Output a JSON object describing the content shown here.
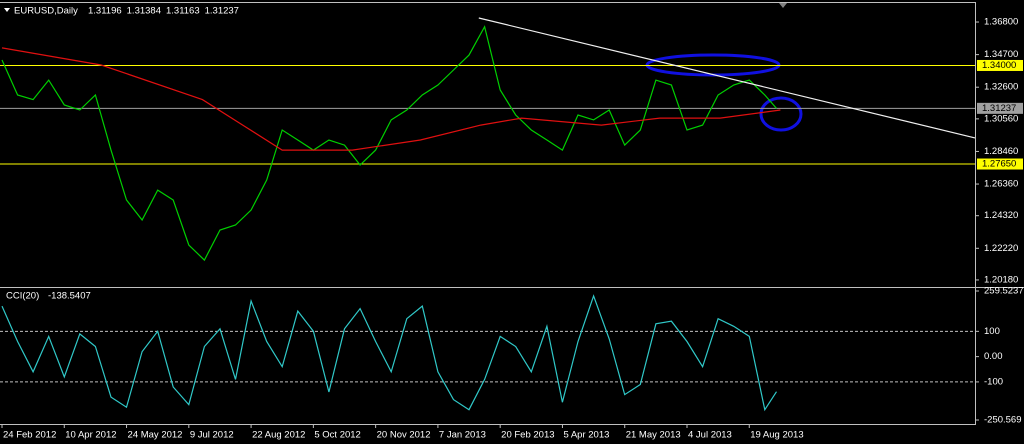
{
  "chart_data": [
    {
      "type": "line",
      "title": "EURUSD,Daily",
      "header_values": [
        1.31196,
        1.31384,
        1.31163,
        1.31237
      ],
      "xlim": [
        0,
        500
      ],
      "ylim": [
        1.1979,
        1.3809
      ],
      "yticks": [
        {
          "value": 1.368,
          "label": "1.36800"
        },
        {
          "value": 1.347,
          "label": "1.34700"
        },
        {
          "value": 1.326,
          "label": "1.32600"
        },
        {
          "value": 1.3056,
          "label": "1.30560"
        },
        {
          "value": 1.2846,
          "label": "1.28460"
        },
        {
          "value": 1.2636,
          "label": "1.26360"
        },
        {
          "value": 1.2432,
          "label": "1.24320"
        },
        {
          "value": 1.2222,
          "label": "1.22220"
        },
        {
          "value": 1.2018,
          "label": "1.20180"
        }
      ],
      "series": [
        {
          "color": "#00d000",
          "x": [
            0,
            8,
            16,
            24,
            32,
            40,
            48,
            56,
            64,
            72,
            80,
            88,
            96,
            104,
            112,
            120,
            128,
            136,
            144,
            152,
            160,
            168,
            176,
            184,
            192,
            200,
            208,
            216,
            224,
            232,
            240,
            248,
            256,
            264,
            272,
            280,
            288,
            296,
            304,
            312,
            320,
            328,
            336,
            344,
            352,
            360,
            368,
            376,
            384,
            392,
            398
          ],
          "values": [
            1.3435,
            1.321,
            1.318,
            1.3306,
            1.3145,
            1.3113,
            1.321,
            1.2855,
            1.2533,
            1.2404,
            1.2597,
            1.2533,
            1.2243,
            1.2146,
            1.234,
            1.2372,
            1.2469,
            1.2662,
            1.2984,
            1.292,
            1.2855,
            1.292,
            1.2887,
            1.2759,
            1.2855,
            1.3049,
            1.3113,
            1.321,
            1.3274,
            1.3371,
            1.3467,
            1.365,
            1.3242,
            1.3081,
            1.2984,
            1.292,
            1.2855,
            1.3081,
            1.3049,
            1.3113,
            1.2887,
            1.2984,
            1.3306,
            1.3274,
            1.2984,
            1.3016,
            1.321,
            1.3274,
            1.3306,
            1.321,
            1.31237
          ]
        },
        {
          "color": "#e01010",
          "x": [
            0,
            51,
            103,
            144,
            180,
            215,
            246,
            267,
            308,
            338,
            369,
            400
          ],
          "values": [
            1.3513,
            1.3403,
            1.318,
            1.2855,
            1.2855,
            1.292,
            1.3016,
            1.3061,
            1.3016,
            1.3061,
            1.3061,
            1.3113
          ]
        },
        {
          "color": "#f0f0f0",
          "x": [
            245,
            500
          ],
          "values": [
            1.3706,
            1.2933
          ]
        }
      ],
      "hlines": [
        {
          "value": 1.34,
          "label": "1.34000",
          "color": "#ffff00"
        },
        {
          "value": 1.31237,
          "label": "1.31237",
          "color": "#a0a0a0"
        },
        {
          "value": 1.2765,
          "label": "1.27650",
          "color": "#ffff00"
        }
      ]
    },
    {
      "type": "line",
      "title": "CCI(20)",
      "xlim": [
        0,
        500
      ],
      "ylim": [
        -250.569,
        259.5237
      ],
      "yticks": [
        259.5237,
        100,
        {
          "value": 0,
          "label": "0.00"
        },
        -100,
        -250.569
      ],
      "xticks": [
        {
          "value": 0,
          "label": "24 Feb 2012"
        },
        {
          "value": 32,
          "label": "10 Apr 2012"
        },
        {
          "value": 64,
          "label": "24 May 2012"
        },
        {
          "value": 96,
          "label": "9 Jul 2012"
        },
        {
          "value": 128,
          "label": "22 Aug 2012"
        },
        {
          "value": 160,
          "label": "5 Oct 2012"
        },
        {
          "value": 192,
          "label": "20 Nov 2012"
        },
        {
          "value": 224,
          "label": "7 Jan 2013"
        },
        {
          "value": 256,
          "label": "20 Feb 2013"
        },
        {
          "value": 288,
          "label": "5 Apr 2013"
        },
        {
          "value": 320,
          "label": "21 May 2013"
        },
        {
          "value": 352,
          "label": "4 Jul 2013"
        },
        {
          "value": 384,
          "label": "19 Aug 2013"
        }
      ],
      "series": [
        {
          "color": "#30c8c8",
          "x": [
            0,
            8,
            16,
            24,
            32,
            40,
            48,
            56,
            64,
            72,
            80,
            88,
            96,
            104,
            112,
            120,
            128,
            136,
            144,
            152,
            160,
            168,
            176,
            184,
            192,
            200,
            208,
            216,
            224,
            232,
            240,
            248,
            256,
            264,
            272,
            280,
            288,
            296,
            304,
            312,
            320,
            328,
            336,
            344,
            352,
            360,
            368,
            376,
            384,
            392,
            398
          ],
          "values": [
            200,
            60,
            -60,
            80,
            -80,
            90,
            40,
            -160,
            -200,
            20,
            100,
            -120,
            -190,
            40,
            110,
            -90,
            220,
            60,
            -40,
            180,
            100,
            -140,
            110,
            190,
            60,
            -60,
            150,
            200,
            -60,
            -170,
            -210,
            -90,
            80,
            40,
            -60,
            120,
            -180,
            60,
            240,
            70,
            -150,
            -110,
            130,
            140,
            60,
            -40,
            150,
            120,
            80,
            -210,
            -138.5407
          ]
        }
      ]
    }
  ]
}
